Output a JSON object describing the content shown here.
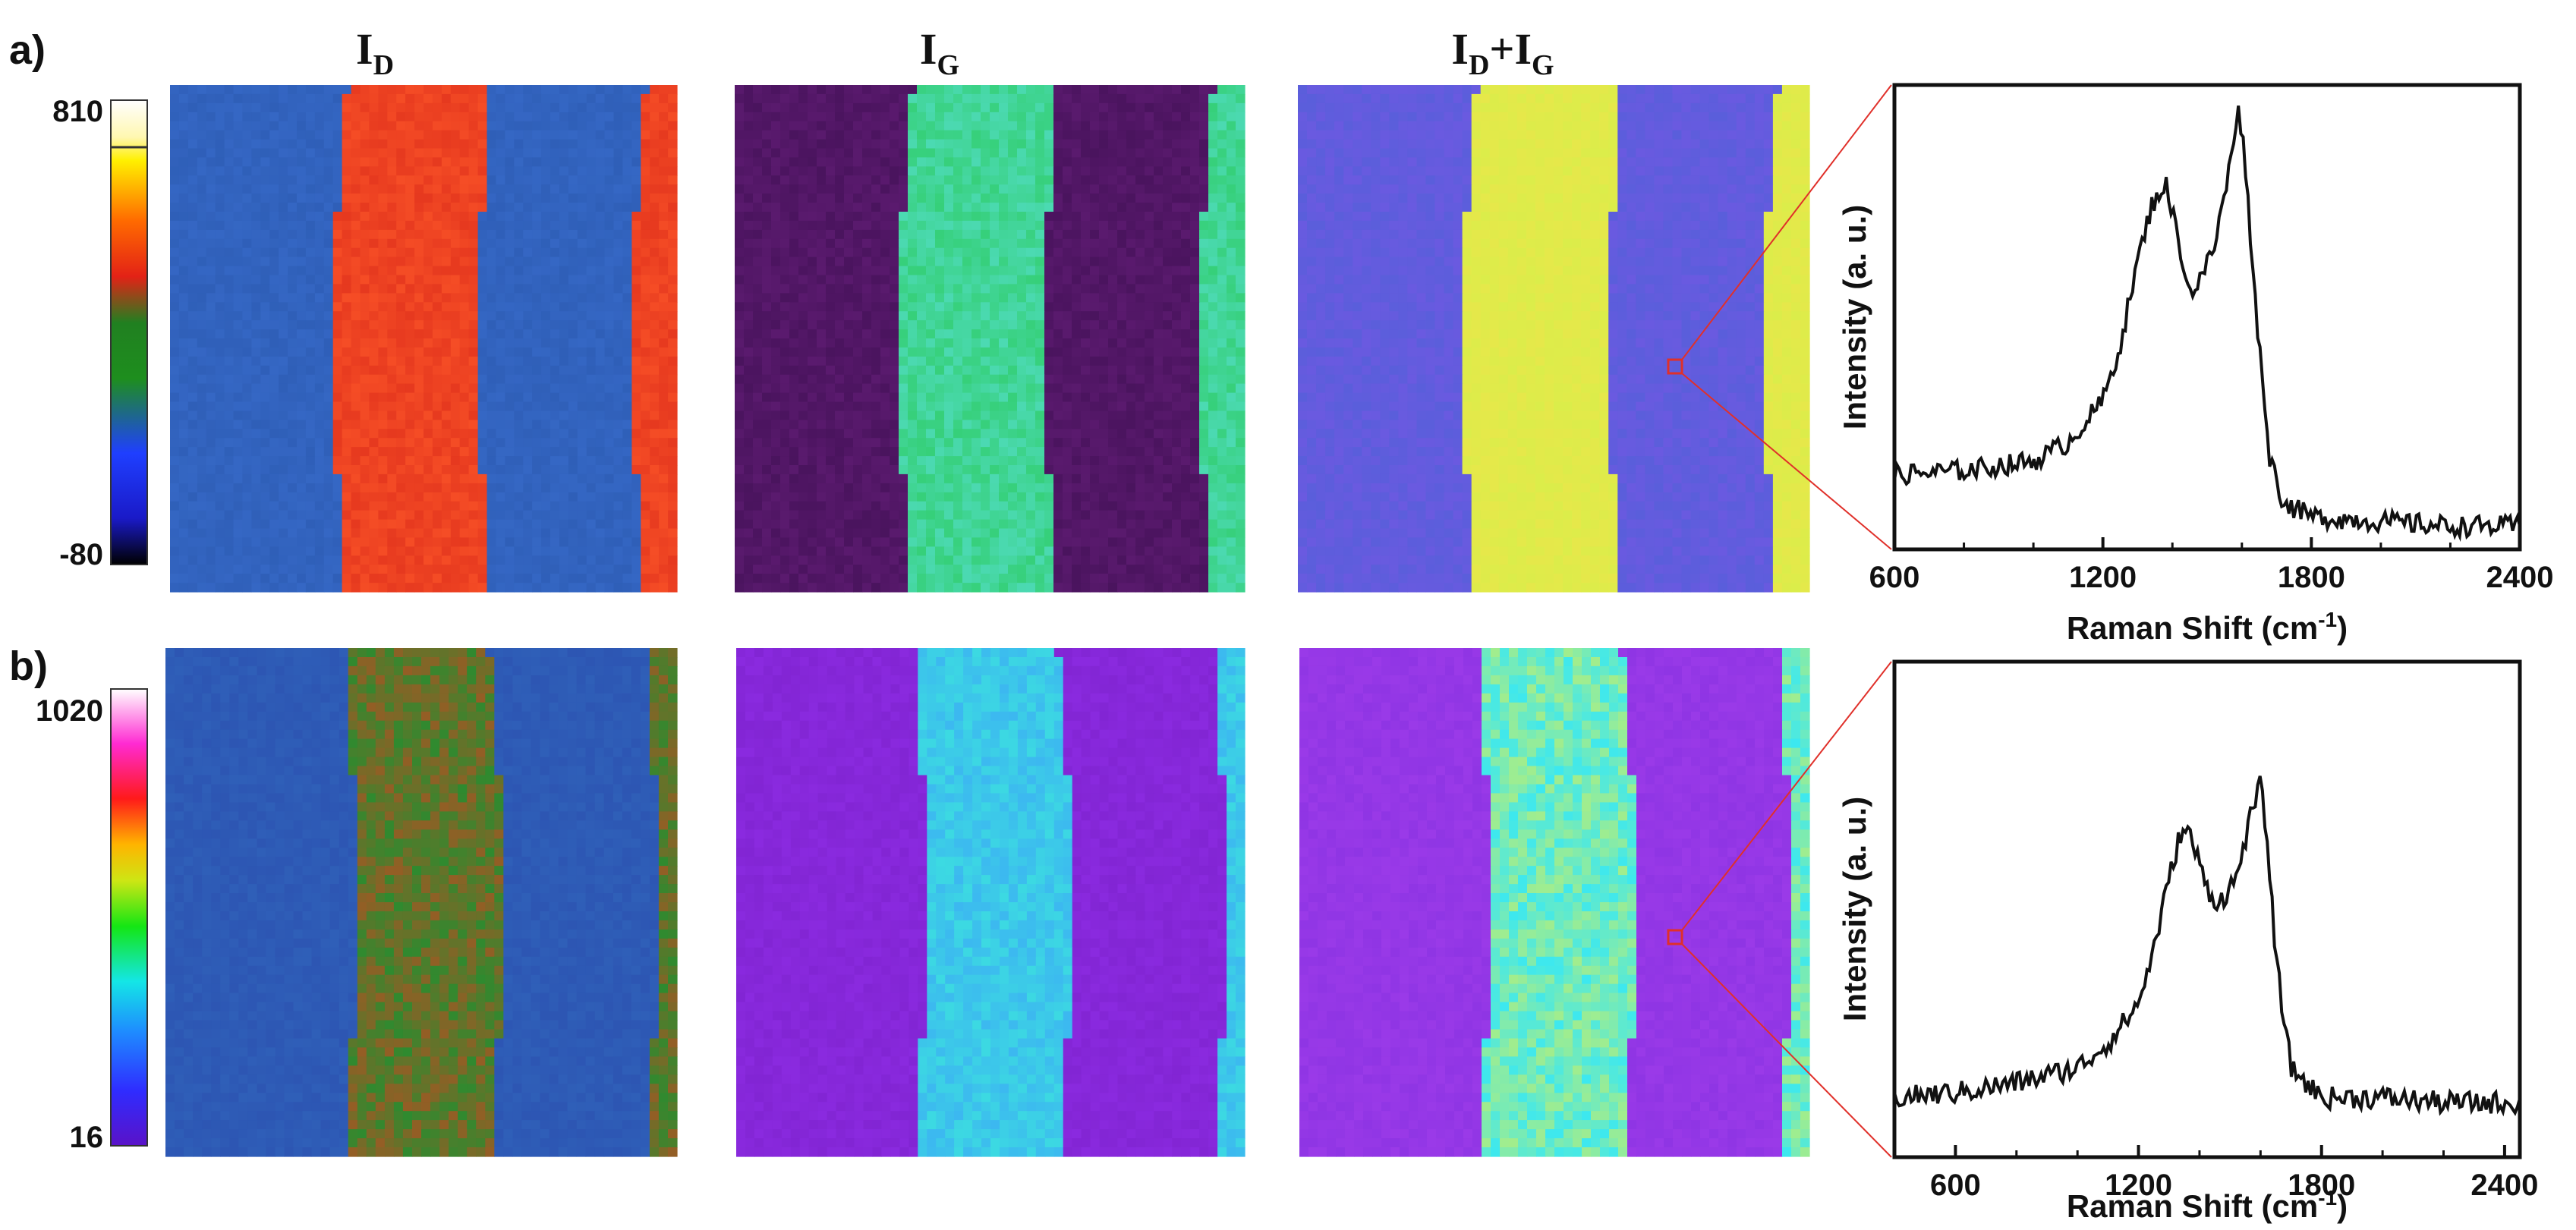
{
  "figure": {
    "rows": [
      {
        "label": "a)",
        "colorbar": {
          "max_label": "810",
          "min_label": "-80",
          "scale": "rainbow-black-blue-green-red-yellow-white"
        },
        "maps": [
          {
            "title": "I",
            "sub": "D",
            "palette": "id"
          },
          {
            "title": "I",
            "sub": "G",
            "palette": "ig"
          },
          {
            "title": "I",
            "sub": "D",
            "plus": "+I",
            "sub2": "G",
            "palette": "sum"
          }
        ],
        "spectrum": {
          "ylabel": "Intensity (a. u.)",
          "xlabel_main": "Raman Shift (cm",
          "xlabel_sup": "-1",
          "xlabel_end": ")",
          "xticks": [
            "600",
            "1200",
            "1800",
            "2400"
          ]
        }
      },
      {
        "label": "b)",
        "colorbar": {
          "max_label": "1020",
          "min_label": "16",
          "scale": "rainbow-violet-blue-cyan-green-yellow-red-magenta-white"
        },
        "maps": [
          {
            "title": "",
            "palette": "id"
          },
          {
            "title": "",
            "palette": "ig"
          },
          {
            "title": "",
            "palette": "sum"
          }
        ],
        "spectrum": {
          "ylabel": "Intensity (a. u.)",
          "xlabel_main": "Raman Shift (cm",
          "xlabel_sup": "-1",
          "xlabel_end": ")",
          "xticks": [
            "600",
            "1200",
            "1800",
            "2400"
          ]
        }
      }
    ],
    "colors": {
      "line": "#111111",
      "zoom_line": "#e0302a",
      "id_background": "#2f5fb8",
      "id_band": "#e6391f",
      "ig_background": "#5a1a6e",
      "ig_band": "#36d07a",
      "sum_background": "#6a5ae0",
      "sum_band": "#e6e84a"
    }
  },
  "chart_data": [
    {
      "type": "line",
      "series": [
        {
          "x": [
            600,
            800,
            1000,
            1100,
            1200,
            1250,
            1300,
            1340,
            1380,
            1420,
            1450,
            1480,
            1520,
            1560,
            1590,
            1610,
            1640,
            1680,
            1720,
            1800,
            2000,
            2200,
            2400
          ],
          "values": [
            0.16,
            0.17,
            0.19,
            0.23,
            0.32,
            0.44,
            0.62,
            0.74,
            0.79,
            0.66,
            0.55,
            0.58,
            0.65,
            0.8,
            0.96,
            0.83,
            0.52,
            0.2,
            0.1,
            0.07,
            0.06,
            0.05,
            0.05
          ]
        }
      ],
      "xlim": [
        600,
        2400
      ],
      "xticks": [
        600,
        1200,
        1800,
        2400
      ],
      "xlabel": "Raman Shift (cm-1)",
      "ylabel": "Intensity (a. u.)"
    },
    {
      "type": "line",
      "series": [
        {
          "x": [
            400,
            600,
            800,
            1000,
            1100,
            1200,
            1250,
            1300,
            1340,
            1370,
            1420,
            1460,
            1520,
            1560,
            1600,
            1620,
            1650,
            1700,
            1800,
            2000,
            2200,
            2450
          ],
          "values": [
            0.12,
            0.13,
            0.15,
            0.18,
            0.23,
            0.31,
            0.42,
            0.56,
            0.66,
            0.65,
            0.55,
            0.51,
            0.56,
            0.67,
            0.75,
            0.66,
            0.4,
            0.18,
            0.12,
            0.12,
            0.11,
            0.11
          ]
        }
      ],
      "xlim": [
        400,
        2450
      ],
      "xticks": [
        600,
        1200,
        1800,
        2400
      ],
      "xlabel": "Raman Shift (cm-1)",
      "ylabel": "Intensity (a. u.)"
    }
  ]
}
